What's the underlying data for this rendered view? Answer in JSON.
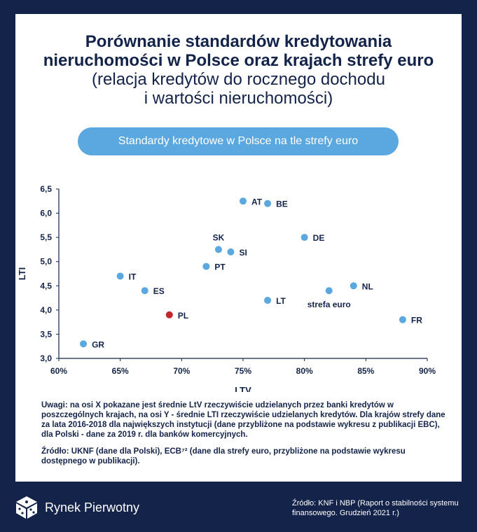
{
  "title": {
    "line1": "Porównanie standardów kredytowania",
    "line2": "nieruchomości w Polsce oraz krajach strefy euro",
    "line3": "(relacja kredytów do rocznego dochodu",
    "line4": "i wartości nieruchomości)"
  },
  "pill_label": "Standardy kredytowe w Polsce na tle strefy euro",
  "chart_data": {
    "type": "scatter",
    "xlabel": "LTV",
    "ylabel": "LTI",
    "xlim": [
      60,
      90
    ],
    "ylim": [
      3.0,
      6.5
    ],
    "xticks": [
      "60%",
      "65%",
      "70%",
      "75%",
      "80%",
      "85%",
      "90%"
    ],
    "yticks": [
      "3,0",
      "3,5",
      "4,0",
      "4,5",
      "5,0",
      "5,5",
      "6,0",
      "6,5"
    ],
    "grid": false,
    "colors": {
      "default": "#5ba7df",
      "highlight": "#c0272d"
    },
    "points": [
      {
        "label": "AT",
        "x": 75,
        "y": 6.25
      },
      {
        "label": "BE",
        "x": 77,
        "y": 6.2
      },
      {
        "label": "DE",
        "x": 80,
        "y": 5.5
      },
      {
        "label": "SK",
        "x": 73,
        "y": 5.25
      },
      {
        "label": "SI",
        "x": 74,
        "y": 5.2
      },
      {
        "label": "PT",
        "x": 72,
        "y": 4.9
      },
      {
        "label": "IT",
        "x": 65,
        "y": 4.7
      },
      {
        "label": "ES",
        "x": 67,
        "y": 4.4
      },
      {
        "label": "NL",
        "x": 84,
        "y": 4.5
      },
      {
        "label": "strefa euro",
        "x": 82,
        "y": 4.4
      },
      {
        "label": "LT",
        "x": 77,
        "y": 4.2
      },
      {
        "label": "PL",
        "x": 69,
        "y": 3.9,
        "highlight": true
      },
      {
        "label": "FR",
        "x": 88,
        "y": 3.8
      },
      {
        "label": "GR",
        "x": 62,
        "y": 3.3
      }
    ]
  },
  "notes": {
    "p1": "Uwagi: na osi X pokazane jest średnie LtV rzeczywiście udzielanych przez banki kredytów w poszczególnych krajach, na osi Y - średnie LTI rzeczywiście udzielanych kredytów. Dla krajów strefy dane za lata 2016-2018 dla największych instytucji (dane przybliżone na podstawie wykresu z publikacji EBC), dla Polski - dane za 2019 r. dla banków komercyjnych.",
    "p2": "Źródło: UKNF (dane dla Polski), ECB⁷² (dane dla strefy euro, przybliżone na podstawie wykresu dostępnego w publikacji)."
  },
  "brand": {
    "name": "Rynek Pierwotny",
    "logo_icon": "cube-logo-icon"
  },
  "source": "Źródło: KNF i NBP (Raport o stabilności systemu finansowego. Grudzień 2021 r.)"
}
